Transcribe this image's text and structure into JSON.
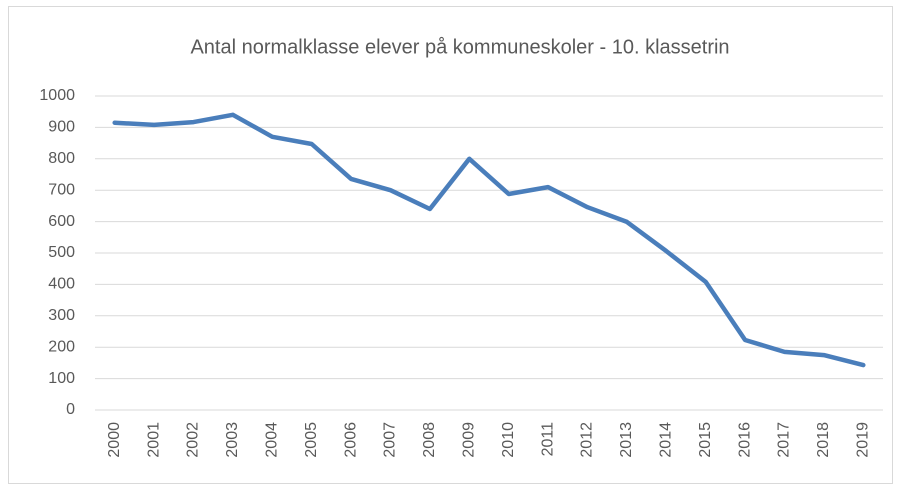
{
  "chart_data": {
    "type": "line",
    "title": "Antal normalklasse elever på kommuneskoler - 10. klassetrin",
    "categories": [
      "2000",
      "2001",
      "2002",
      "2003",
      "2004",
      "2005",
      "2006",
      "2007",
      "2008",
      "2009",
      "2010",
      "2011",
      "2012",
      "2013",
      "2014",
      "2015",
      "2016",
      "2017",
      "2018",
      "2019"
    ],
    "values": [
      915,
      908,
      917,
      940,
      870,
      847,
      736,
      700,
      640,
      800,
      688,
      710,
      646,
      599,
      506,
      408,
      223,
      185,
      175,
      143
    ],
    "color": "#4a7ebb",
    "ylim": [
      0,
      1000
    ],
    "yticks": [
      0,
      100,
      200,
      300,
      400,
      500,
      600,
      700,
      800,
      900,
      1000
    ],
    "grid": true
  }
}
